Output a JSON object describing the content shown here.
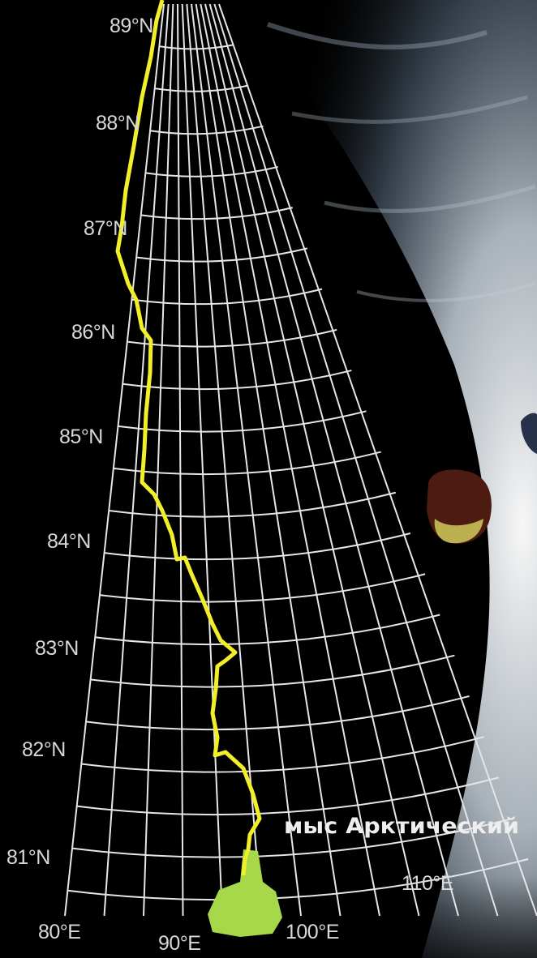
{
  "map": {
    "latitudes": [
      "89°N",
      "88°N",
      "87°N",
      "86°N",
      "85°N",
      "84°N",
      "83°N",
      "82°N",
      "81°N"
    ],
    "longitudes": [
      "80°E",
      "90°E",
      "100°E",
      "110°E"
    ],
    "place_label": "мыс Арктический",
    "colors": {
      "background": "#000000",
      "grid": "#e6e6e6",
      "route": "#f2ee2a",
      "land": "#a6d84a",
      "labels": "#d8d8d8",
      "clouds": "#c9d3dc"
    }
  }
}
